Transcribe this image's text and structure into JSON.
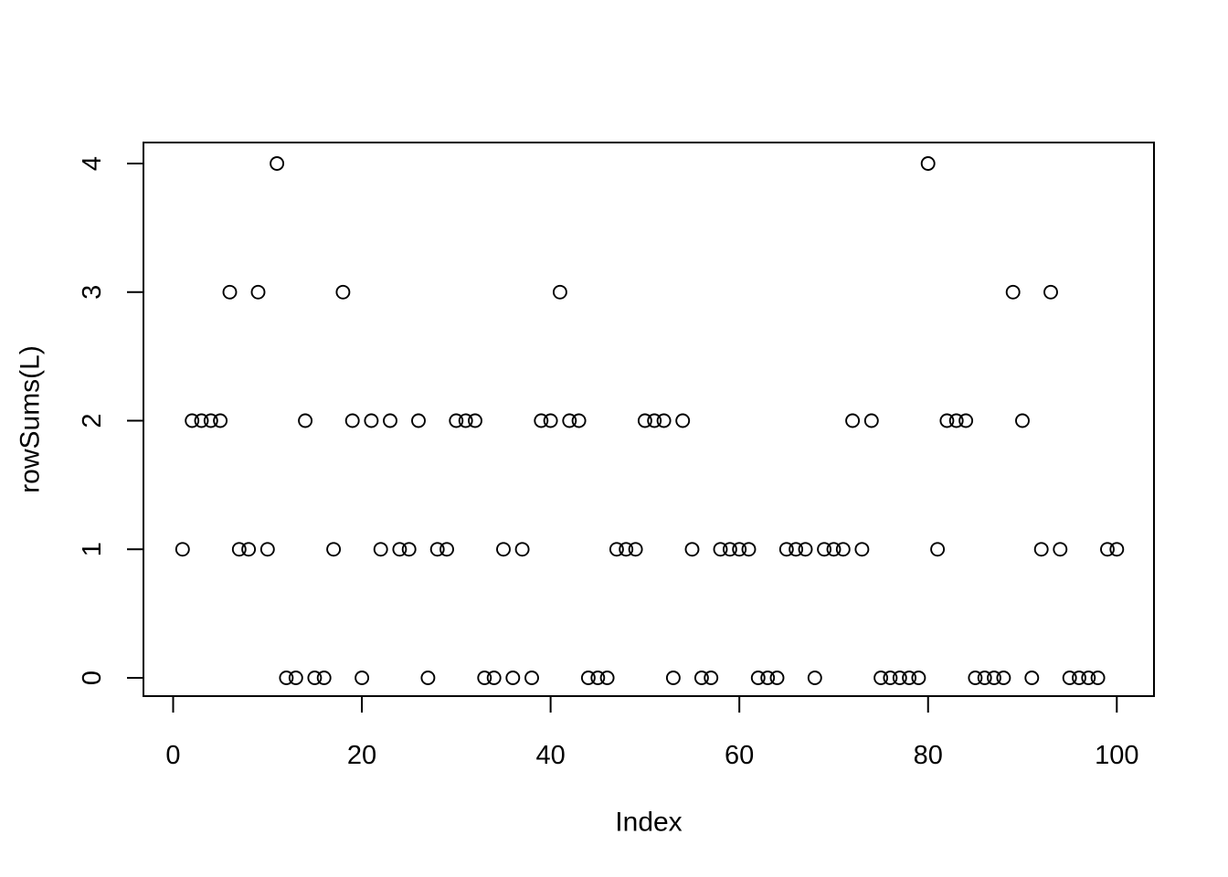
{
  "window": {
    "background": "#ffffff",
    "foreground": "#000000"
  },
  "chart_data": {
    "type": "scatter",
    "title": "",
    "xlabel": "Index",
    "ylabel": "rowSums(L)",
    "marker": "open-circle",
    "marker_color": "#000000",
    "axis_color": "#000000",
    "grid": false,
    "xlim": [
      -3.1,
      103.9
    ],
    "ylim": [
      -0.14,
      4.16
    ],
    "x_ticks": [
      0,
      20,
      40,
      60,
      80,
      100
    ],
    "y_ticks": [
      0,
      1,
      2,
      3,
      4
    ],
    "n_points": 100,
    "x": [
      1,
      2,
      3,
      4,
      5,
      6,
      7,
      8,
      9,
      10,
      11,
      12,
      13,
      14,
      15,
      16,
      17,
      18,
      19,
      20,
      21,
      22,
      23,
      24,
      25,
      26,
      27,
      28,
      29,
      30,
      31,
      32,
      33,
      34,
      35,
      36,
      37,
      38,
      39,
      40,
      41,
      42,
      43,
      44,
      45,
      46,
      47,
      48,
      49,
      50,
      51,
      52,
      53,
      54,
      55,
      56,
      57,
      58,
      59,
      60,
      61,
      62,
      63,
      64,
      65,
      66,
      67,
      68,
      69,
      70,
      71,
      72,
      73,
      74,
      75,
      76,
      77,
      78,
      79,
      80,
      81,
      82,
      83,
      84,
      85,
      86,
      87,
      88,
      89,
      90,
      91,
      92,
      93,
      94,
      95,
      96,
      97,
      98,
      99,
      100
    ],
    "y": [
      1,
      2,
      2,
      2,
      2,
      3,
      1,
      1,
      3,
      1,
      4,
      0,
      0,
      2,
      0,
      0,
      1,
      3,
      2,
      0,
      2,
      1,
      2,
      1,
      1,
      2,
      0,
      1,
      1,
      2,
      2,
      2,
      0,
      0,
      1,
      0,
      1,
      0,
      2,
      2,
      3,
      2,
      2,
      0,
      0,
      0,
      1,
      1,
      1,
      2,
      2,
      2,
      0,
      2,
      1,
      0,
      0,
      1,
      1,
      1,
      1,
      0,
      0,
      0,
      1,
      1,
      1,
      0,
      1,
      1,
      1,
      2,
      1,
      2,
      0,
      0,
      0,
      0,
      0,
      4,
      1,
      2,
      2,
      2,
      0,
      0,
      0,
      0,
      3,
      2,
      0,
      1,
      3,
      1,
      0,
      0,
      0,
      0,
      1,
      1
    ]
  }
}
